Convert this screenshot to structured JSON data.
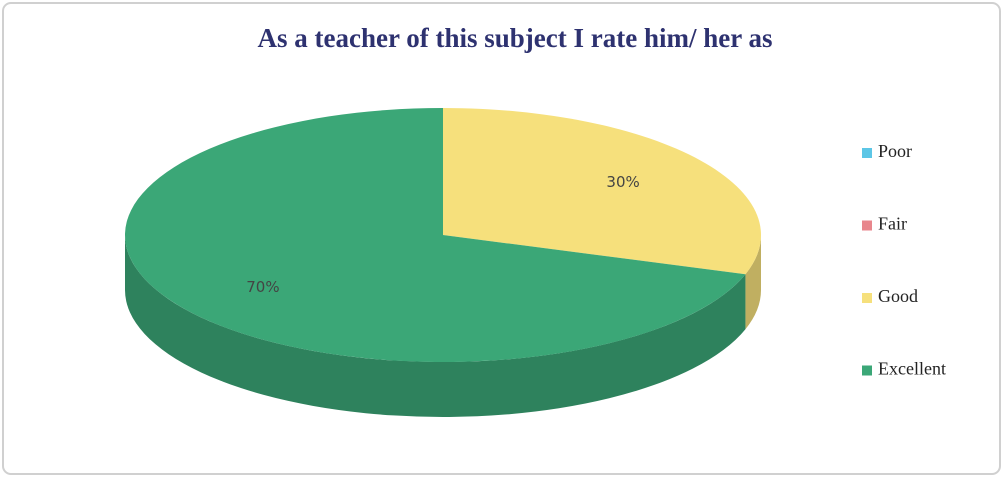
{
  "chart_data": {
    "type": "pie",
    "title": "As a teacher of this subject I rate him/ her as",
    "categories": [
      "Poor",
      "Fair",
      "Good",
      "Excellent"
    ],
    "values": [
      0,
      0,
      30,
      70
    ],
    "value_labels": [
      null,
      null,
      "30%",
      "70%"
    ],
    "colors": [
      "#5cc6e6",
      "#e8868c",
      "#f6e07c",
      "#3ba777"
    ],
    "legend": "right"
  }
}
